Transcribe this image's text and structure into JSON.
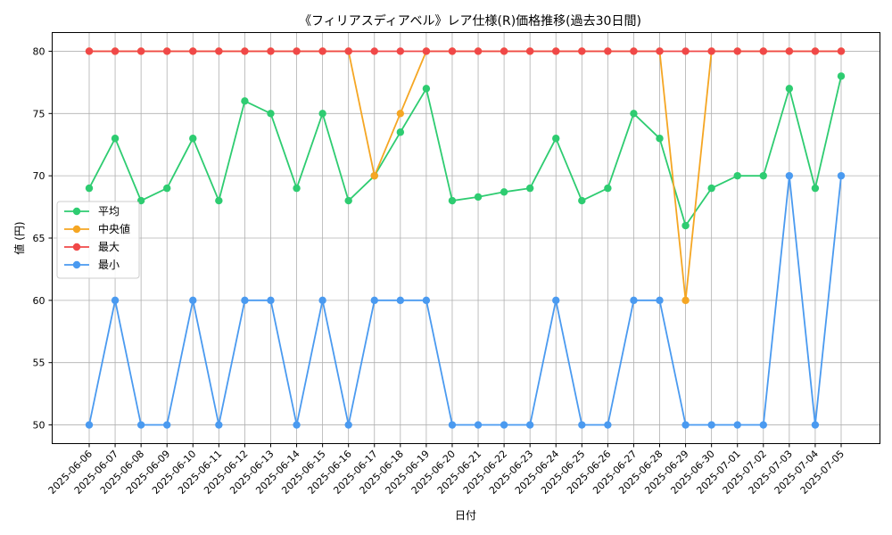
{
  "chart_data": {
    "type": "line",
    "title": "《フィリアスディアベル》レア仕様(R)価格推移(過去30日間)",
    "xlabel": "日付",
    "ylabel": "値 (円)",
    "ylim": [
      48.5,
      81.5
    ],
    "yticks": [
      50,
      55,
      60,
      65,
      70,
      75,
      80
    ],
    "grid": true,
    "legend_position": "center-left",
    "categories": [
      "2025-06-06",
      "2025-06-07",
      "2025-06-08",
      "2025-06-09",
      "2025-06-10",
      "2025-06-11",
      "2025-06-12",
      "2025-06-13",
      "2025-06-14",
      "2025-06-15",
      "2025-06-16",
      "2025-06-17",
      "2025-06-18",
      "2025-06-19",
      "2025-06-20",
      "2025-06-21",
      "2025-06-22",
      "2025-06-23",
      "2025-06-24",
      "2025-06-25",
      "2025-06-26",
      "2025-06-27",
      "2025-06-28",
      "2025-06-29",
      "2025-06-30",
      "2025-07-01",
      "2025-07-02",
      "2025-07-03",
      "2025-07-04",
      "2025-07-05"
    ],
    "series": [
      {
        "name": "平均",
        "color": "#2ecc71",
        "values": [
          69,
          73,
          68,
          69,
          73,
          68,
          76,
          75,
          69,
          75,
          68,
          70,
          73.5,
          77,
          68,
          68.3,
          68.7,
          69,
          73,
          68,
          69,
          75,
          73,
          66,
          69,
          70,
          70,
          77,
          69,
          78
        ]
      },
      {
        "name": "中央値",
        "color": "#f5a623",
        "values": [
          80,
          80,
          80,
          80,
          80,
          80,
          80,
          80,
          80,
          80,
          80,
          70,
          75,
          80,
          80,
          80,
          80,
          80,
          80,
          80,
          80,
          80,
          80,
          60,
          80,
          80,
          80,
          80,
          80,
          80
        ]
      },
      {
        "name": "最大",
        "color": "#f04848",
        "values": [
          80,
          80,
          80,
          80,
          80,
          80,
          80,
          80,
          80,
          80,
          80,
          80,
          80,
          80,
          80,
          80,
          80,
          80,
          80,
          80,
          80,
          80,
          80,
          80,
          80,
          80,
          80,
          80,
          80,
          80
        ]
      },
      {
        "name": "最小",
        "color": "#4a9af0",
        "values": [
          50,
          60,
          50,
          50,
          60,
          50,
          60,
          60,
          50,
          60,
          50,
          60,
          60,
          60,
          50,
          50,
          50,
          50,
          60,
          50,
          50,
          60,
          60,
          50,
          50,
          50,
          50,
          70,
          50,
          70
        ]
      }
    ]
  }
}
